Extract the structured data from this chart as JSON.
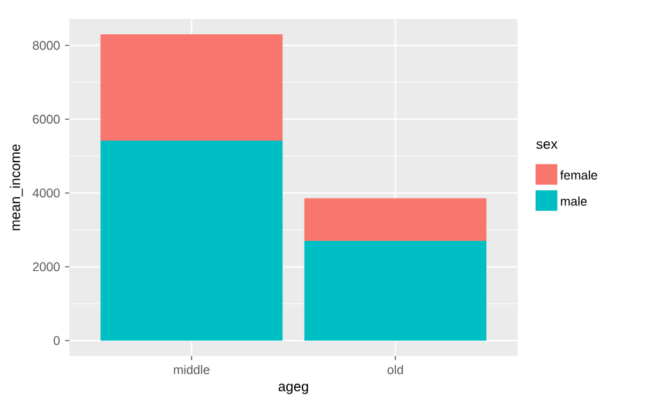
{
  "chart_data": {
    "type": "bar",
    "stacked": true,
    "xlabel": "ageg",
    "ylabel": "mean_income",
    "legend_title": "sex",
    "legend": "right",
    "grid": true,
    "categories": [
      "middle",
      "old"
    ],
    "series": [
      {
        "name": "male",
        "color": "#00bfc4",
        "values": [
          5420,
          2700
        ]
      },
      {
        "name": "female",
        "color": "#f8766d",
        "values": [
          2880,
          1160
        ]
      }
    ],
    "ylim": [
      -415,
      8715
    ],
    "yticks": [
      0,
      2000,
      4000,
      6000,
      8000
    ]
  }
}
